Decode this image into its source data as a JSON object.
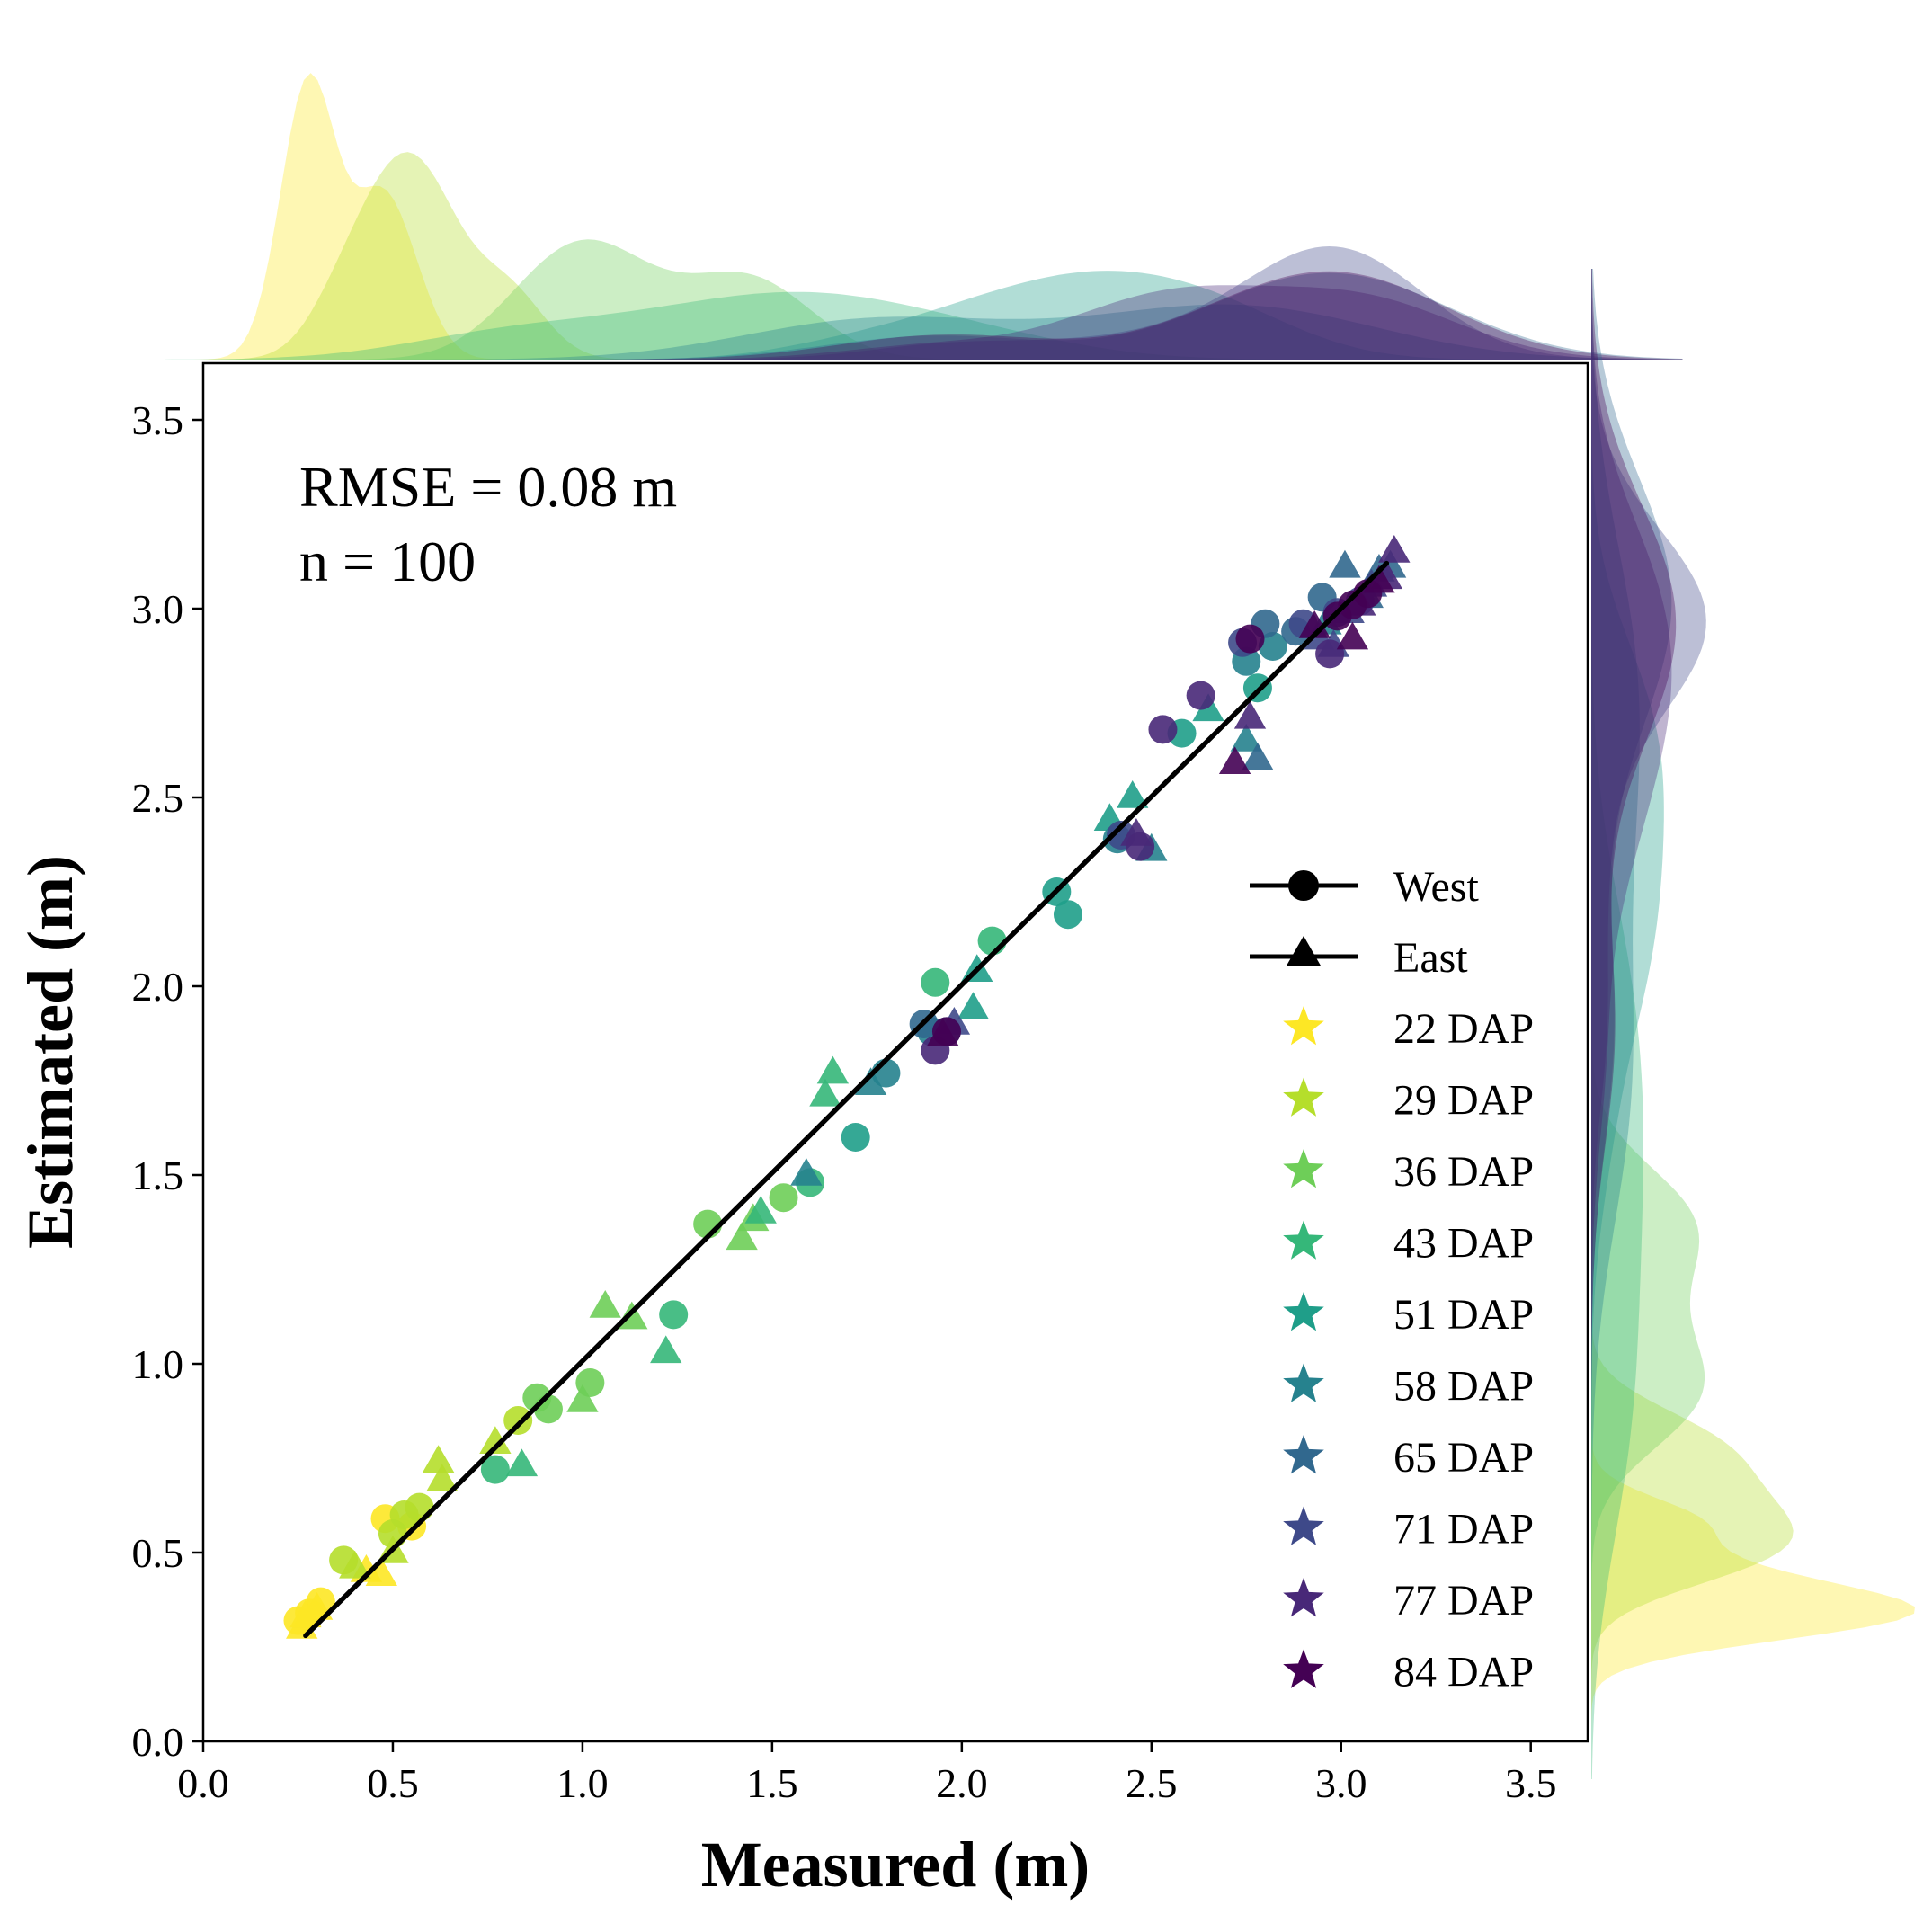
{
  "chart_data": {
    "type": "scatter",
    "xlabel": "Measured (m)",
    "ylabel": "Estimated (m)",
    "xlim": [
      0.0,
      3.65
    ],
    "ylim": [
      0.0,
      3.65
    ],
    "xticks": [
      "0.0",
      "0.5",
      "1.0",
      "1.5",
      "2.0",
      "2.5",
      "3.0",
      "3.5"
    ],
    "yticks": [
      "0.0",
      "0.5",
      "1.0",
      "1.5",
      "2.0",
      "2.5",
      "3.0",
      "3.5"
    ],
    "annotations": [
      "RMSE = 0.08 m",
      "n = 100"
    ],
    "grid": false,
    "legend_position": "lower-right",
    "fit_line": {
      "x": [
        0.27,
        3.12
      ],
      "y": [
        0.28,
        3.12
      ],
      "color": "#000000"
    },
    "legend": {
      "markers": [
        {
          "label": "West",
          "shape": "circle"
        },
        {
          "label": "East",
          "shape": "triangle"
        }
      ],
      "groups": [
        {
          "label": "22 DAP",
          "color": "#fde725"
        },
        {
          "label": "29 DAP",
          "color": "#b5de2b"
        },
        {
          "label": "36 DAP",
          "color": "#6ece58"
        },
        {
          "label": "43 DAP",
          "color": "#35b779"
        },
        {
          "label": "51 DAP",
          "color": "#1f9e89"
        },
        {
          "label": "58 DAP",
          "color": "#26828e"
        },
        {
          "label": "65 DAP",
          "color": "#31688e"
        },
        {
          "label": "71 DAP",
          "color": "#3e4989"
        },
        {
          "label": "77 DAP",
          "color": "#482878"
        },
        {
          "label": "84 DAP",
          "color": "#440154"
        }
      ]
    },
    "series": [
      {
        "group": "22 DAP",
        "points": [
          {
            "x": 0.25,
            "y": 0.32,
            "m": "c"
          },
          {
            "x": 0.28,
            "y": 0.34,
            "m": "c"
          },
          {
            "x": 0.31,
            "y": 0.37,
            "m": "c"
          },
          {
            "x": 0.48,
            "y": 0.59,
            "m": "c"
          },
          {
            "x": 0.55,
            "y": 0.57,
            "m": "c"
          },
          {
            "x": 0.26,
            "y": 0.3,
            "m": "t"
          },
          {
            "x": 0.27,
            "y": 0.33,
            "m": "t"
          },
          {
            "x": 0.3,
            "y": 0.35,
            "m": "t"
          },
          {
            "x": 0.43,
            "y": 0.45,
            "m": "t"
          },
          {
            "x": 0.47,
            "y": 0.44,
            "m": "t"
          }
        ]
      },
      {
        "group": "29 DAP",
        "points": [
          {
            "x": 0.37,
            "y": 0.48,
            "m": "c"
          },
          {
            "x": 0.5,
            "y": 0.55,
            "m": "c"
          },
          {
            "x": 0.53,
            "y": 0.6,
            "m": "c"
          },
          {
            "x": 0.57,
            "y": 0.62,
            "m": "c"
          },
          {
            "x": 0.83,
            "y": 0.85,
            "m": "c"
          },
          {
            "x": 0.4,
            "y": 0.46,
            "m": "t"
          },
          {
            "x": 0.5,
            "y": 0.5,
            "m": "t"
          },
          {
            "x": 0.62,
            "y": 0.74,
            "m": "t"
          },
          {
            "x": 0.63,
            "y": 0.69,
            "m": "t"
          },
          {
            "x": 0.77,
            "y": 0.79,
            "m": "t"
          }
        ]
      },
      {
        "group": "36 DAP",
        "points": [
          {
            "x": 0.88,
            "y": 0.91,
            "m": "c"
          },
          {
            "x": 0.91,
            "y": 0.88,
            "m": "c"
          },
          {
            "x": 1.02,
            "y": 0.95,
            "m": "c"
          },
          {
            "x": 1.33,
            "y": 1.37,
            "m": "c"
          },
          {
            "x": 1.53,
            "y": 1.44,
            "m": "c"
          },
          {
            "x": 1.0,
            "y": 0.9,
            "m": "t"
          },
          {
            "x": 1.06,
            "y": 1.15,
            "m": "t"
          },
          {
            "x": 1.13,
            "y": 1.12,
            "m": "t"
          },
          {
            "x": 1.42,
            "y": 1.33,
            "m": "t"
          },
          {
            "x": 1.45,
            "y": 1.38,
            "m": "t"
          }
        ]
      },
      {
        "group": "43 DAP",
        "points": [
          {
            "x": 0.77,
            "y": 0.72,
            "m": "c"
          },
          {
            "x": 1.24,
            "y": 1.13,
            "m": "c"
          },
          {
            "x": 1.6,
            "y": 1.48,
            "m": "c"
          },
          {
            "x": 1.93,
            "y": 2.01,
            "m": "c"
          },
          {
            "x": 2.08,
            "y": 2.12,
            "m": "c"
          },
          {
            "x": 0.84,
            "y": 0.73,
            "m": "t"
          },
          {
            "x": 1.22,
            "y": 1.03,
            "m": "t"
          },
          {
            "x": 1.47,
            "y": 1.4,
            "m": "t"
          },
          {
            "x": 1.64,
            "y": 1.71,
            "m": "t"
          },
          {
            "x": 1.66,
            "y": 1.77,
            "m": "t"
          }
        ]
      },
      {
        "group": "51 DAP",
        "points": [
          {
            "x": 1.72,
            "y": 1.6,
            "m": "c"
          },
          {
            "x": 2.25,
            "y": 2.25,
            "m": "c"
          },
          {
            "x": 2.28,
            "y": 2.19,
            "m": "c"
          },
          {
            "x": 2.58,
            "y": 2.67,
            "m": "c"
          },
          {
            "x": 2.78,
            "y": 2.79,
            "m": "c"
          },
          {
            "x": 2.03,
            "y": 1.94,
            "m": "t"
          },
          {
            "x": 2.04,
            "y": 2.04,
            "m": "t"
          },
          {
            "x": 2.39,
            "y": 2.44,
            "m": "t"
          },
          {
            "x": 2.45,
            "y": 2.5,
            "m": "t"
          },
          {
            "x": 2.65,
            "y": 2.73,
            "m": "t"
          }
        ]
      },
      {
        "group": "58 DAP",
        "points": [
          {
            "x": 1.8,
            "y": 1.77,
            "m": "c"
          },
          {
            "x": 1.92,
            "y": 1.88,
            "m": "c"
          },
          {
            "x": 2.41,
            "y": 2.39,
            "m": "c"
          },
          {
            "x": 2.75,
            "y": 2.86,
            "m": "c"
          },
          {
            "x": 2.82,
            "y": 2.9,
            "m": "c"
          },
          {
            "x": 1.59,
            "y": 1.5,
            "m": "t"
          },
          {
            "x": 1.76,
            "y": 1.74,
            "m": "t"
          },
          {
            "x": 2.5,
            "y": 2.36,
            "m": "t"
          },
          {
            "x": 2.75,
            "y": 2.65,
            "m": "t"
          },
          {
            "x": 2.96,
            "y": 2.96,
            "m": "t"
          }
        ]
      },
      {
        "group": "65 DAP",
        "points": [
          {
            "x": 1.9,
            "y": 1.9,
            "m": "c"
          },
          {
            "x": 1.96,
            "y": 1.88,
            "m": "c"
          },
          {
            "x": 2.8,
            "y": 2.96,
            "m": "c"
          },
          {
            "x": 2.88,
            "y": 2.94,
            "m": "c"
          },
          {
            "x": 2.95,
            "y": 3.03,
            "m": "c"
          },
          {
            "x": 2.78,
            "y": 2.6,
            "m": "t"
          },
          {
            "x": 3.01,
            "y": 3.11,
            "m": "t"
          },
          {
            "x": 3.07,
            "y": 3.03,
            "m": "t"
          },
          {
            "x": 3.1,
            "y": 3.1,
            "m": "t"
          },
          {
            "x": 3.13,
            "y": 3.11,
            "m": "t"
          }
        ]
      },
      {
        "group": "71 DAP",
        "points": [
          {
            "x": 2.42,
            "y": 2.4,
            "m": "c"
          },
          {
            "x": 2.74,
            "y": 2.91,
            "m": "c"
          },
          {
            "x": 2.99,
            "y": 2.99,
            "m": "c"
          },
          {
            "x": 3.05,
            "y": 3.02,
            "m": "c"
          },
          {
            "x": 2.9,
            "y": 2.96,
            "m": "c"
          },
          {
            "x": 1.98,
            "y": 1.9,
            "m": "t"
          },
          {
            "x": 2.94,
            "y": 2.92,
            "m": "t"
          },
          {
            "x": 3.02,
            "y": 2.99,
            "m": "t"
          },
          {
            "x": 3.08,
            "y": 3.06,
            "m": "t"
          },
          {
            "x": 2.98,
            "y": 2.9,
            "m": "t"
          }
        ]
      },
      {
        "group": "77 DAP",
        "points": [
          {
            "x": 1.93,
            "y": 1.83,
            "m": "c"
          },
          {
            "x": 2.47,
            "y": 2.37,
            "m": "c"
          },
          {
            "x": 2.53,
            "y": 2.68,
            "m": "c"
          },
          {
            "x": 2.63,
            "y": 2.77,
            "m": "c"
          },
          {
            "x": 2.97,
            "y": 2.88,
            "m": "c"
          },
          {
            "x": 2.46,
            "y": 2.4,
            "m": "t"
          },
          {
            "x": 2.76,
            "y": 2.71,
            "m": "t"
          },
          {
            "x": 3.05,
            "y": 3.01,
            "m": "t"
          },
          {
            "x": 3.12,
            "y": 3.08,
            "m": "t"
          },
          {
            "x": 3.14,
            "y": 3.15,
            "m": "t"
          }
        ]
      },
      {
        "group": "84 DAP",
        "points": [
          {
            "x": 1.96,
            "y": 1.88,
            "m": "c"
          },
          {
            "x": 2.76,
            "y": 2.92,
            "m": "c"
          },
          {
            "x": 3.07,
            "y": 3.04,
            "m": "c"
          },
          {
            "x": 3.03,
            "y": 3.01,
            "m": "c"
          },
          {
            "x": 2.99,
            "y": 2.98,
            "m": "c"
          },
          {
            "x": 1.95,
            "y": 1.87,
            "m": "t"
          },
          {
            "x": 2.72,
            "y": 2.59,
            "m": "t"
          },
          {
            "x": 3.03,
            "y": 2.92,
            "m": "t"
          },
          {
            "x": 2.93,
            "y": 2.95,
            "m": "t"
          },
          {
            "x": 3.1,
            "y": 3.07,
            "m": "t"
          }
        ]
      }
    ]
  }
}
